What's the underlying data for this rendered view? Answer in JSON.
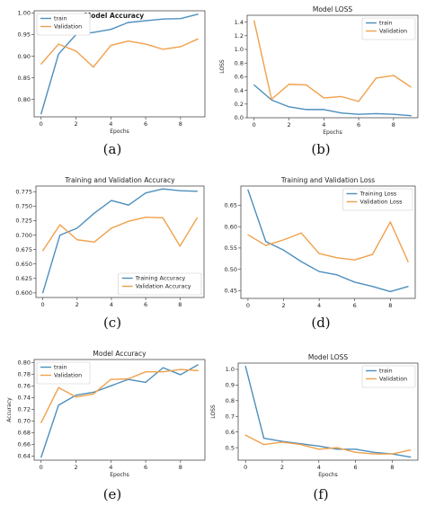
{
  "chart_data": [
    {
      "id": "a",
      "type": "line",
      "title": "Model Accuracy",
      "xlabel": "Epochs",
      "ylabel": "",
      "x": [
        0,
        1,
        2,
        3,
        4,
        5,
        6,
        7,
        8,
        9
      ],
      "xlim": [
        -0.4,
        9.4
      ],
      "ylim": [
        0.76,
        1.005
      ],
      "xticks": [
        0,
        2,
        4,
        6,
        8
      ],
      "yticks": [
        0.8,
        0.85,
        0.9,
        0.95,
        1.0
      ],
      "ytick_labels": [
        "0.80",
        "0.85",
        "0.90",
        "0.95",
        "1.00"
      ],
      "legend": "top-left",
      "series": [
        {
          "name": "train",
          "color": "#4c8fbd",
          "values": [
            0.767,
            0.905,
            0.95,
            0.955,
            0.962,
            0.978,
            0.982,
            0.986,
            0.987,
            0.997
          ]
        },
        {
          "name": "Validation",
          "color": "#f0a04b",
          "values": [
            0.882,
            0.928,
            0.912,
            0.875,
            0.925,
            0.935,
            0.928,
            0.916,
            0.922,
            0.94
          ]
        }
      ]
    },
    {
      "id": "b",
      "type": "line",
      "title": "Model LOSS",
      "xlabel": "Epochs",
      "ylabel": "LOSS",
      "x": [
        0,
        1,
        2,
        3,
        4,
        5,
        6,
        7,
        8,
        9
      ],
      "xlim": [
        -0.4,
        9.4
      ],
      "ylim": [
        0,
        1.5
      ],
      "xticks": [
        0,
        2,
        4,
        6,
        8
      ],
      "yticks": [
        0.0,
        0.2,
        0.4,
        0.6,
        0.8,
        1.0,
        1.2,
        1.4
      ],
      "ytick_labels": [
        "0.0",
        "0.2",
        "0.4",
        "0.6",
        "0.8",
        "1.0",
        "1.2",
        "1.4"
      ],
      "legend": "top-right",
      "series": [
        {
          "name": "train",
          "color": "#4c8fbd",
          "values": [
            0.48,
            0.26,
            0.16,
            0.12,
            0.12,
            0.07,
            0.05,
            0.06,
            0.05,
            0.03
          ]
        },
        {
          "name": "Validation",
          "color": "#f0a04b",
          "values": [
            1.42,
            0.27,
            0.49,
            0.48,
            0.29,
            0.31,
            0.24,
            0.58,
            0.62,
            0.45
          ]
        }
      ]
    },
    {
      "id": "c",
      "type": "line",
      "title": "Training and Validation Accuracy",
      "xlabel": "",
      "ylabel": "",
      "x": [
        0,
        1,
        2,
        3,
        4,
        5,
        6,
        7,
        8,
        9
      ],
      "xlim": [
        -0.4,
        9.4
      ],
      "ylim": [
        0.592,
        0.785
      ],
      "xticks": [
        0,
        2,
        4,
        6,
        8
      ],
      "yticks": [
        0.6,
        0.625,
        0.65,
        0.675,
        0.7,
        0.725,
        0.75,
        0.775
      ],
      "ytick_labels": [
        "0.600",
        "0.625",
        "0.650",
        "0.675",
        "0.700",
        "0.725",
        "0.750",
        "0.775"
      ],
      "legend": "bottom-right",
      "series": [
        {
          "name": "Training Accuracy",
          "color": "#4c8fbd",
          "values": [
            0.6,
            0.7,
            0.712,
            0.738,
            0.76,
            0.752,
            0.773,
            0.78,
            0.777,
            0.776
          ]
        },
        {
          "name": "Validation Accuracy",
          "color": "#f0a04b",
          "values": [
            0.673,
            0.718,
            0.692,
            0.688,
            0.712,
            0.724,
            0.731,
            0.73,
            0.681,
            0.73
          ]
        }
      ]
    },
    {
      "id": "d",
      "type": "line",
      "title": "Training and Validation Loss",
      "xlabel": "",
      "ylabel": "",
      "x": [
        0,
        1,
        2,
        3,
        4,
        5,
        6,
        7,
        8,
        9
      ],
      "xlim": [
        -0.4,
        9.4
      ],
      "ylim": [
        0.432,
        0.695
      ],
      "xticks": [
        0,
        2,
        4,
        6,
        8
      ],
      "yticks": [
        0.45,
        0.5,
        0.55,
        0.6,
        0.65
      ],
      "ytick_labels": [
        "0.45",
        "0.50",
        "0.55",
        "0.60",
        "0.65"
      ],
      "legend": "top-right",
      "series": [
        {
          "name": "Training Loss",
          "color": "#4c8fbd",
          "values": [
            0.686,
            0.565,
            0.545,
            0.518,
            0.495,
            0.487,
            0.47,
            0.46,
            0.448,
            0.46
          ]
        },
        {
          "name": "Validation Loss",
          "color": "#f0a04b",
          "values": [
            0.581,
            0.556,
            0.569,
            0.585,
            0.537,
            0.527,
            0.522,
            0.535,
            0.611,
            0.518
          ]
        }
      ]
    },
    {
      "id": "e",
      "type": "line",
      "title": "Model Accuracy",
      "xlabel": "Epochs",
      "ylabel": "Accuracy",
      "x": [
        0,
        1,
        2,
        3,
        4,
        5,
        6,
        7,
        8,
        9
      ],
      "xlim": [
        -0.4,
        9.4
      ],
      "ylim": [
        0.633,
        0.805
      ],
      "xticks": [
        0,
        2,
        4,
        6,
        8
      ],
      "yticks": [
        0.64,
        0.66,
        0.68,
        0.7,
        0.72,
        0.74,
        0.76,
        0.78,
        0.8
      ],
      "ytick_labels": [
        "0.64",
        "0.66",
        "0.68",
        "0.70",
        "0.72",
        "0.74",
        "0.76",
        "0.78",
        "0.80"
      ],
      "legend": "top-left",
      "series": [
        {
          "name": "train",
          "color": "#4c8fbd",
          "values": [
            0.638,
            0.727,
            0.744,
            0.749,
            0.76,
            0.771,
            0.766,
            0.791,
            0.779,
            0.796
          ]
        },
        {
          "name": "Validation",
          "color": "#f0a04b",
          "values": [
            0.697,
            0.757,
            0.741,
            0.746,
            0.771,
            0.772,
            0.784,
            0.784,
            0.788,
            0.786
          ]
        }
      ]
    },
    {
      "id": "f",
      "type": "line",
      "title": "Model LOSS",
      "xlabel": "Epochs",
      "ylabel": "LOSS",
      "x": [
        0,
        1,
        2,
        3,
        4,
        5,
        6,
        7,
        8,
        9
      ],
      "xlim": [
        -0.4,
        9.4
      ],
      "ylim": [
        0.42,
        1.04
      ],
      "xticks": [
        0,
        2,
        4,
        6,
        8
      ],
      "yticks": [
        0.5,
        0.6,
        0.7,
        0.8,
        0.9,
        1.0
      ],
      "ytick_labels": [
        "0.5",
        "0.6",
        "0.7",
        "0.8",
        "0.9",
        "1.0"
      ],
      "legend": "top-right",
      "series": [
        {
          "name": "train",
          "color": "#4c8fbd",
          "values": [
            1.02,
            0.56,
            0.54,
            0.525,
            0.51,
            0.49,
            0.49,
            0.47,
            0.46,
            0.44
          ]
        },
        {
          "name": "Validation",
          "color": "#f0a04b",
          "values": [
            0.58,
            0.52,
            0.535,
            0.52,
            0.49,
            0.5,
            0.47,
            0.46,
            0.46,
            0.485
          ]
        }
      ]
    }
  ],
  "captions": [
    "(a)",
    "(b)",
    "(c)",
    "(d)",
    "(e)",
    "(f)"
  ]
}
